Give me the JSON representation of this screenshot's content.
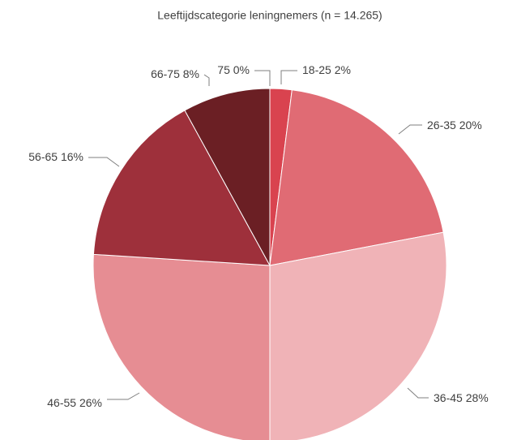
{
  "chart_data": {
    "type": "pie",
    "title": "Leeftijdscategorie leningnemers (n = 14.265)",
    "categories": [
      "18-25",
      "26-35",
      "36-45",
      "46-55",
      "56-65",
      "66-75",
      "75"
    ],
    "values": [
      2,
      20,
      28,
      26,
      16,
      8,
      0
    ],
    "value_labels": [
      "2%",
      "20%",
      "28%",
      "26%",
      "16%",
      "8%",
      "0%"
    ],
    "colors": [
      "#d9434f",
      "#e06b74",
      "#f0b3b7",
      "#e68d93",
      "#9e303b",
      "#6b1f24",
      "#4a1418"
    ]
  }
}
